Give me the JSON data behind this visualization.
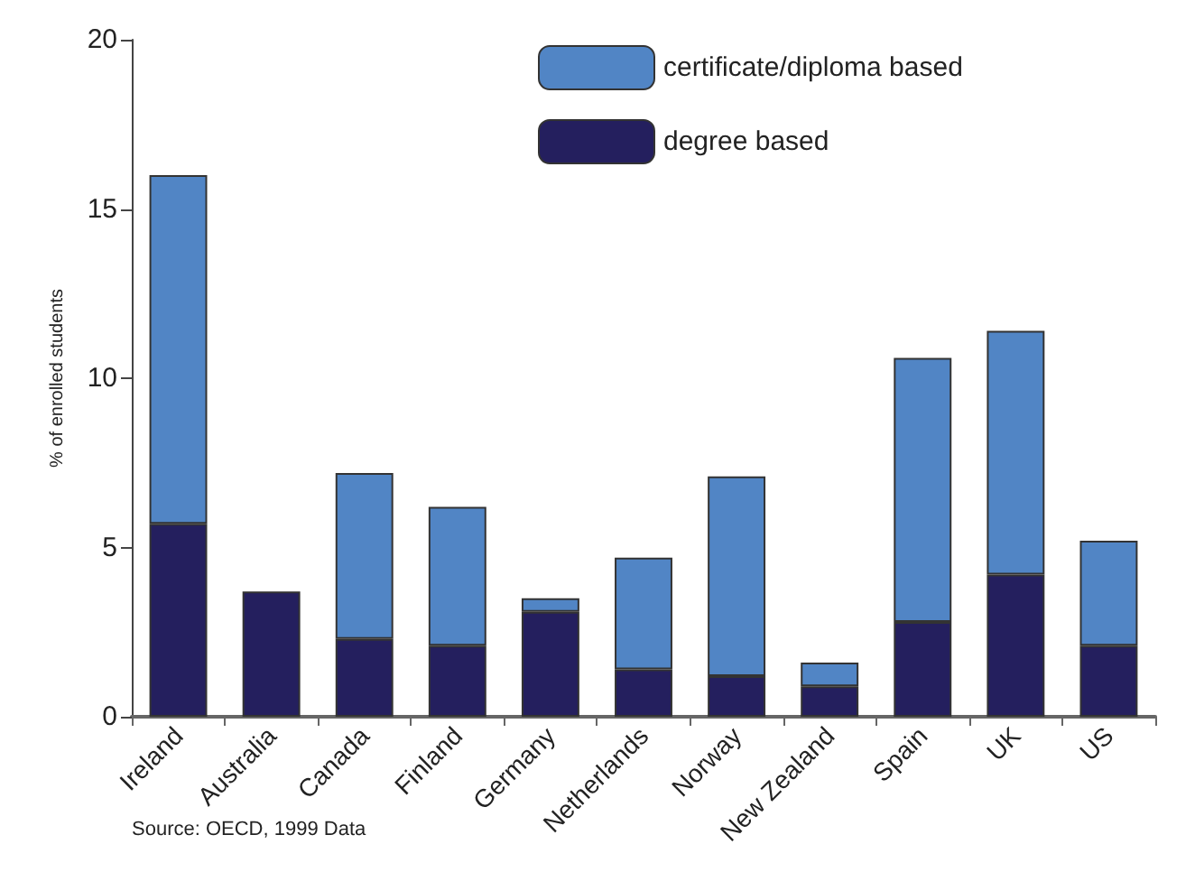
{
  "chart_data": {
    "type": "bar",
    "stacked": true,
    "ylabel": "% of enrolled students",
    "categories": [
      "Ireland",
      "Australia",
      "Canada",
      "Finland",
      "Germany",
      "Netherlands",
      "Norway",
      "New Zealand",
      "Spain",
      "UK",
      "US"
    ],
    "series": [
      {
        "name": "degree based",
        "color": "#241f5e",
        "values": [
          5.7,
          3.7,
          2.3,
          2.1,
          3.1,
          1.4,
          1.2,
          0.9,
          2.8,
          4.2,
          2.1
        ]
      },
      {
        "name": "certificate/diploma based",
        "color": "#5185c5",
        "values": [
          10.3,
          null,
          4.9,
          4.1,
          0.4,
          3.3,
          5.9,
          0.7,
          7.8,
          7.2,
          3.1
        ]
      }
    ],
    "ylim": [
      0,
      20
    ],
    "yticks": [
      0,
      5,
      10,
      15,
      20
    ],
    "grid": false,
    "legend": "top right",
    "annotations": [
      "Source: OECD, 1999 Data"
    ]
  }
}
